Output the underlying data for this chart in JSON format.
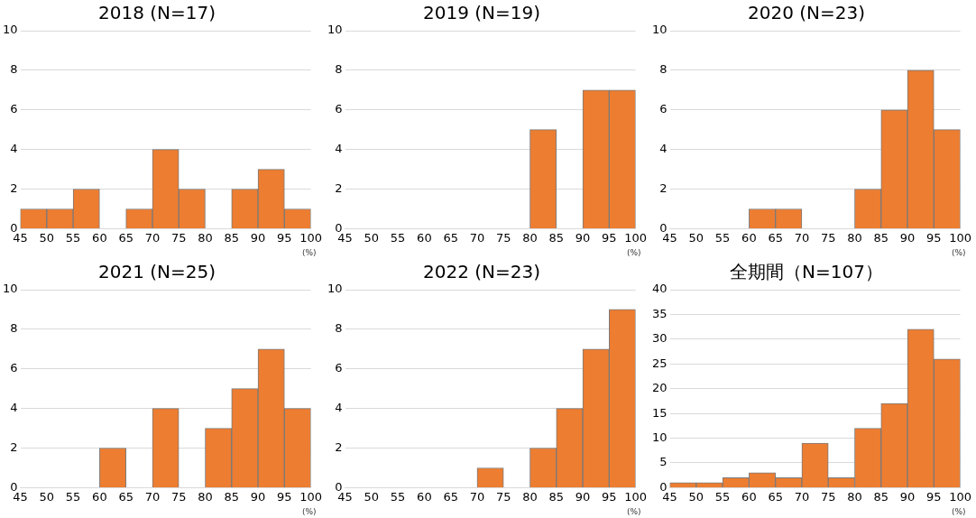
{
  "chart_data": [
    {
      "type": "histogram",
      "title": "2018 (N=17)",
      "bins": [
        45,
        50,
        55,
        60,
        65,
        70,
        75,
        80,
        85,
        90,
        95,
        100
      ],
      "values": [
        1,
        1,
        2,
        0,
        1,
        4,
        2,
        0,
        2,
        3,
        1
      ],
      "color": "#ed7d31",
      "xlim": [
        45,
        100
      ],
      "xticks": [
        45,
        50,
        55,
        60,
        65,
        70,
        75,
        80,
        85,
        90,
        95,
        100
      ],
      "ylim": [
        0,
        10
      ],
      "yticks": [
        0,
        2,
        4,
        6,
        8,
        10
      ],
      "grid": "y",
      "annotations": [
        "(%)"
      ]
    },
    {
      "type": "histogram",
      "title": "2019 (N=19)",
      "bins": [
        45,
        50,
        55,
        60,
        65,
        70,
        75,
        80,
        85,
        90,
        95,
        100
      ],
      "values": [
        0,
        0,
        0,
        0,
        0,
        0,
        0,
        5,
        0,
        7,
        7
      ],
      "color": "#ed7d31",
      "xlim": [
        45,
        100
      ],
      "xticks": [
        45,
        50,
        55,
        60,
        65,
        70,
        75,
        80,
        85,
        90,
        95,
        100
      ],
      "ylim": [
        0,
        10
      ],
      "yticks": [
        0,
        2,
        4,
        6,
        8,
        10
      ],
      "grid": "y",
      "annotations": [
        "(%)"
      ]
    },
    {
      "type": "histogram",
      "title": "2020 (N=23)",
      "bins": [
        45,
        50,
        55,
        60,
        65,
        70,
        75,
        80,
        85,
        90,
        95,
        100
      ],
      "values": [
        0,
        0,
        0,
        1,
        1,
        0,
        0,
        2,
        6,
        8,
        5
      ],
      "color": "#ed7d31",
      "xlim": [
        45,
        100
      ],
      "xticks": [
        45,
        50,
        55,
        60,
        65,
        70,
        75,
        80,
        85,
        90,
        95,
        100
      ],
      "ylim": [
        0,
        10
      ],
      "yticks": [
        0,
        2,
        4,
        6,
        8,
        10
      ],
      "grid": "y",
      "annotations": [
        "(%)"
      ]
    },
    {
      "type": "histogram",
      "title": "2021 (N=25)",
      "bins": [
        45,
        50,
        55,
        60,
        65,
        70,
        75,
        80,
        85,
        90,
        95,
        100
      ],
      "values": [
        0,
        0,
        0,
        2,
        0,
        4,
        0,
        3,
        5,
        7,
        4
      ],
      "color": "#ed7d31",
      "xlim": [
        45,
        100
      ],
      "xticks": [
        45,
        50,
        55,
        60,
        65,
        70,
        75,
        80,
        85,
        90,
        95,
        100
      ],
      "ylim": [
        0,
        10
      ],
      "yticks": [
        0,
        2,
        4,
        6,
        8,
        10
      ],
      "grid": "y",
      "annotations": [
        "(%)"
      ]
    },
    {
      "type": "histogram",
      "title": "2022 (N=23)",
      "bins": [
        45,
        50,
        55,
        60,
        65,
        70,
        75,
        80,
        85,
        90,
        95,
        100
      ],
      "values": [
        0,
        0,
        0,
        0,
        0,
        1,
        0,
        2,
        4,
        7,
        9
      ],
      "color": "#ed7d31",
      "xlim": [
        45,
        100
      ],
      "xticks": [
        45,
        50,
        55,
        60,
        65,
        70,
        75,
        80,
        85,
        90,
        95,
        100
      ],
      "ylim": [
        0,
        10
      ],
      "yticks": [
        0,
        2,
        4,
        6,
        8,
        10
      ],
      "grid": "y",
      "annotations": [
        "(%)"
      ]
    },
    {
      "type": "histogram",
      "title": "全期間（N=107）",
      "bins": [
        45,
        50,
        55,
        60,
        65,
        70,
        75,
        80,
        85,
        90,
        95,
        100
      ],
      "values": [
        1,
        1,
        2,
        3,
        2,
        9,
        2,
        12,
        17,
        32,
        26
      ],
      "color": "#ed7d31",
      "xlim": [
        45,
        100
      ],
      "xticks": [
        45,
        50,
        55,
        60,
        65,
        70,
        75,
        80,
        85,
        90,
        95,
        100
      ],
      "ylim": [
        0,
        40
      ],
      "yticks": [
        0,
        5,
        10,
        15,
        20,
        25,
        30,
        35,
        40
      ],
      "grid": "y",
      "annotations": [
        "(%)"
      ]
    }
  ]
}
